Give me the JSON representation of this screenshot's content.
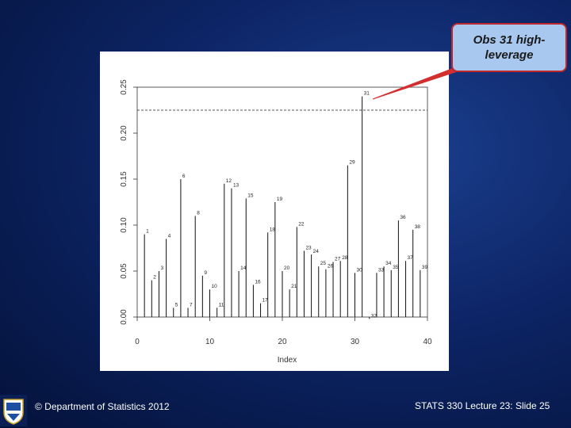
{
  "callout": {
    "text": "Obs 31 high-leverage"
  },
  "footer": {
    "left": "© Department of Statistics 2012",
    "right": "STATS 330 Lecture 23: Slide 25"
  },
  "colors": {
    "callout_fill": "#a8c8f0",
    "callout_border": "#c0272d",
    "pointer": "#d32f2f"
  },
  "chart_data": {
    "type": "scatter",
    "style": "index-plot-with-vertical-lines",
    "xlabel": "Index",
    "ylabel": "",
    "xlim": [
      0,
      40
    ],
    "ylim": [
      0,
      0.25
    ],
    "xticks": [
      "0",
      "10",
      "20",
      "30",
      "40"
    ],
    "yticks": [
      "0.00",
      "0.05",
      "0.10",
      "0.15",
      "0.20",
      "0.25"
    ],
    "threshold": 0.225,
    "labels": [
      "1",
      "2",
      "3",
      "4",
      "5",
      "6",
      "7",
      "8",
      "9",
      "10",
      "11",
      "12",
      "13",
      "14",
      "15",
      "16",
      "17",
      "18",
      "19",
      "20",
      "21",
      "22",
      "23",
      "24",
      "25",
      "26",
      "27",
      "28",
      "29",
      "30",
      "31",
      "32",
      "33",
      "34",
      "35",
      "36",
      "37",
      "38",
      "39"
    ],
    "x": [
      1,
      2,
      3,
      4,
      5,
      6,
      7,
      8,
      9,
      10,
      11,
      12,
      13,
      14,
      15,
      16,
      17,
      18,
      19,
      20,
      21,
      22,
      23,
      24,
      25,
      26,
      27,
      28,
      29,
      30,
      31,
      32,
      33,
      34,
      35,
      36,
      37,
      38,
      39
    ],
    "values": [
      0.09,
      0.04,
      0.05,
      0.085,
      0.01,
      0.15,
      0.01,
      0.11,
      0.045,
      0.03,
      0.01,
      0.145,
      0.14,
      0.05,
      0.129,
      0.035,
      0.015,
      0.092,
      0.125,
      0.05,
      0.03,
      0.098,
      0.072,
      0.068,
      0.055,
      0.052,
      0.06,
      0.061,
      0.165,
      0.048,
      0.24,
      -0.002,
      0.048,
      0.055,
      0.051,
      0.105,
      0.061,
      0.095,
      0.051
    ],
    "grid": false
  }
}
